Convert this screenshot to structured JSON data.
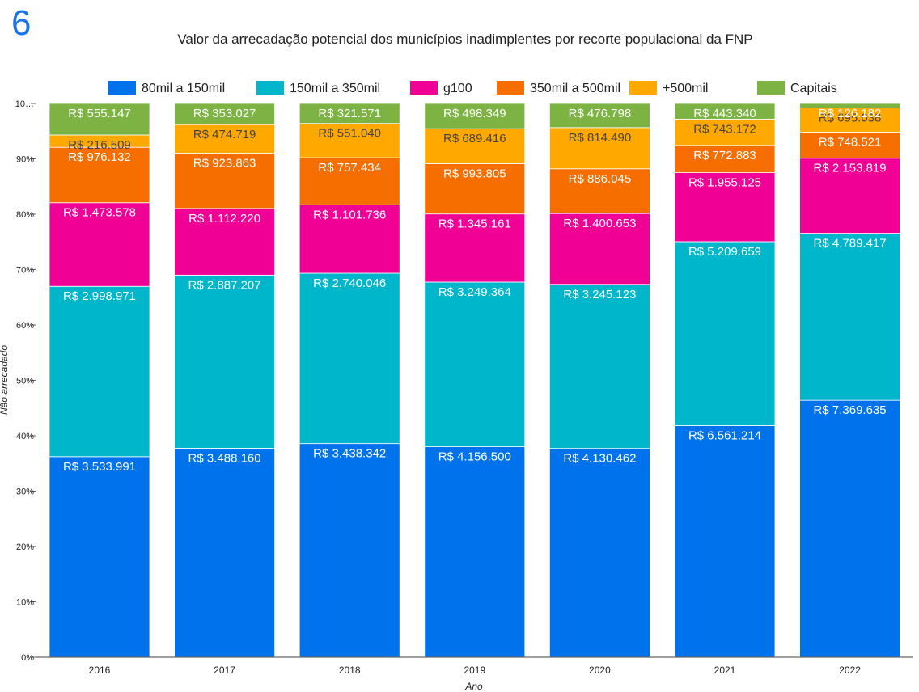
{
  "page_number": "6",
  "chart_data": {
    "type": "bar",
    "stacked": "percent",
    "title": "Valor da arrecadação potencial dos municípios inadimplentes por recorte populacional da FNP",
    "xlabel": "Ano",
    "ylabel": "Não arrecadado",
    "ylim": [
      0,
      100
    ],
    "y_ticks": [
      "0%",
      "10%",
      "20%",
      "30%",
      "40%",
      "50%",
      "60%",
      "70%",
      "80%",
      "90%",
      "10…"
    ],
    "legend_position": "top",
    "categories": [
      "2016",
      "2017",
      "2018",
      "2019",
      "2020",
      "2021",
      "2022"
    ],
    "series": [
      {
        "name": "80mil a 150mil",
        "color": "#0072ec",
        "label_color": "#ffffff",
        "values": [
          3533991,
          3488160,
          3438342,
          4156500,
          4130462,
          6561214,
          7369635
        ],
        "labels": [
          "R$ 3.533.991",
          "R$ 3.488.160",
          "R$ 3.438.342",
          "R$ 4.156.500",
          "R$ 4.130.462",
          "R$ 6.561.214",
          "R$ 7.369.635"
        ]
      },
      {
        "name": "150mil a 350mil",
        "color": "#00b6cb",
        "label_color": "#ffffff",
        "values": [
          2998971,
          2887207,
          2740046,
          3249364,
          3245123,
          5209659,
          4789417
        ],
        "labels": [
          "R$ 2.998.971",
          "R$ 2.887.207",
          "R$ 2.740.046",
          "R$ 3.249.364",
          "R$ 3.245.123",
          "R$ 5.209.659",
          "R$ 4.789.417"
        ]
      },
      {
        "name": "g100",
        "color": "#f10096",
        "label_color": "#ffffff",
        "values": [
          1473578,
          1112220,
          1101736,
          1345161,
          1400653,
          1955125,
          2153819
        ],
        "labels": [
          "R$ 1.473.578",
          "R$ 1.112.220",
          "R$ 1.101.736",
          "R$ 1.345.161",
          "R$ 1.400.653",
          "R$ 1.955.125",
          "R$ 2.153.819"
        ]
      },
      {
        "name": "350mil a 500mil",
        "color": "#f66d00",
        "label_color": "#ffffff",
        "values": [
          976132,
          923863,
          757434,
          993805,
          886045,
          772883,
          748521
        ],
        "labels": [
          "R$ 976.132",
          "R$ 923.863",
          "R$ 757.434",
          "R$ 993.805",
          "R$ 886.045",
          "R$ 772.883",
          "R$ 748.521"
        ]
      },
      {
        "name": "+500mil",
        "color": "#ffa800",
        "label_color": "#444444",
        "values": [
          216509,
          474719,
          551040,
          689416,
          814490,
          743172,
          695038
        ],
        "labels": [
          "R$ 216.509",
          "R$ 474.719",
          "R$ 551.040",
          "R$ 689.416",
          "R$ 814.490",
          "R$ 743.172",
          "R$ 695.038"
        ]
      },
      {
        "name": "Capitais",
        "color": "#7cb342",
        "label_color": "#ffffff",
        "values": [
          555147,
          353027,
          321571,
          498349,
          476798,
          443340,
          126182
        ],
        "labels": [
          "R$ 555.147",
          "R$ 353.027",
          "R$ 321.571",
          "R$ 498.349",
          "R$ 476.798",
          "R$ 443.340",
          "R$ 126.182"
        ]
      }
    ]
  }
}
